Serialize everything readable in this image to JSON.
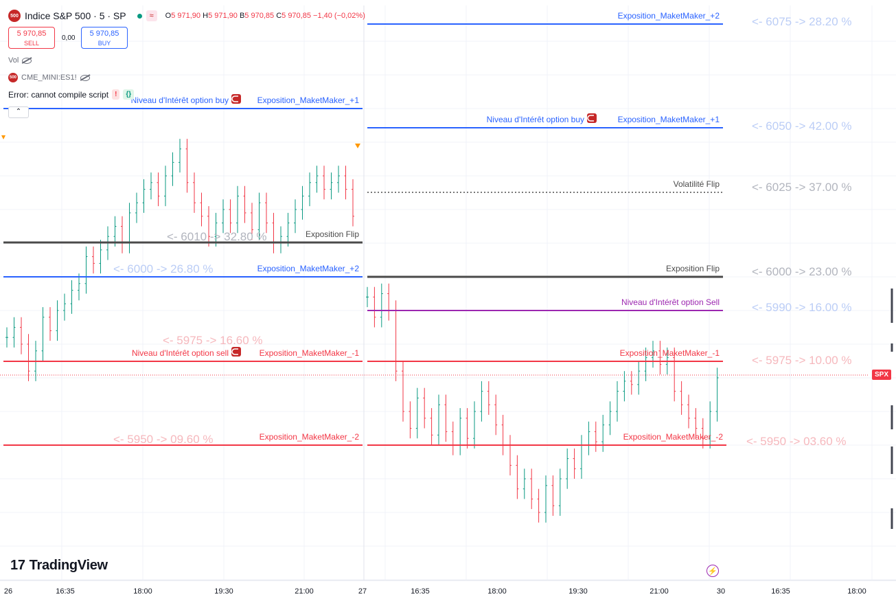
{
  "header": {
    "logo_text": "500",
    "symbol": "Indice S&P 500 · 5 · SP",
    "wave_icon": "≈",
    "o_label": "O",
    "o_value": "5 971,90",
    "h_label": "H",
    "h_value": "5 971,90",
    "b_label": "B",
    "b_value": "5 970,85",
    "c_label": "C",
    "c_value": "5 970,85",
    "change": "−1,40 (−0,02%)"
  },
  "trade": {
    "sell_price": "5 970,85",
    "sell_label": "SELL",
    "spread": "0,00",
    "buy_price": "5 970,85",
    "buy_label": "BUY"
  },
  "indicators": {
    "vol_label": "Vol",
    "cme_logo": "500",
    "cme_label": "CME_MINI:ES1!",
    "error_text": "Error: cannot compile script",
    "error_badge": "!",
    "code_badge": "{}",
    "collapse_icon": "chevron-up-icon"
  },
  "colors": {
    "blue": "#2962ff",
    "black": "#4a4a4a",
    "red": "#f23645",
    "purple": "#9c27b0",
    "up": "#089981",
    "down": "#f23645",
    "faded_blue": "#bbcdf6",
    "faded_red": "#f6b8bd",
    "faded_gray": "#b2b5be"
  },
  "chart_data": {
    "type": "candlestick",
    "x_ticks": [
      "26",
      "16:35",
      "18:00",
      "19:30",
      "21:00",
      "27",
      "16:35",
      "18:00",
      "19:30",
      "21:00",
      "30",
      "16:35",
      "18:00"
    ],
    "last_price_tag": "SPX",
    "day1_closes": [
      5982,
      5985,
      5980,
      5972,
      5978,
      5988,
      5984,
      5990,
      5992,
      5996,
      5998,
      6006,
      6004,
      6008,
      6012,
      6015,
      6010,
      6019,
      6022,
      6026,
      6028,
      6024,
      6030,
      6034,
      6038,
      6028,
      6022,
      6018,
      6012,
      6016,
      6020,
      6016,
      6024,
      6019,
      6014,
      6022,
      6016,
      6010,
      6012,
      6016,
      6020,
      6024,
      6028,
      6030,
      6026,
      6028,
      6030,
      6026,
      6018
    ],
    "day2_closes": [
      5994,
      5988,
      5995,
      5990,
      5972,
      5960,
      5955,
      5964,
      5958,
      5953,
      5962,
      5954,
      5950,
      5958,
      5952,
      5960,
      5966,
      5962,
      5956,
      5950,
      5944,
      5937,
      5940,
      5934,
      5930,
      5938,
      5932,
      5940,
      5946,
      5943,
      5950,
      5954,
      5951,
      5956,
      5960,
      5966,
      5969,
      5968,
      5972,
      5976,
      5978,
      5974,
      5976,
      5966,
      5962,
      5958,
      5955,
      5952,
      5960,
      5970
    ],
    "levels": [
      {
        "label": "Exposition_MaketMaker_+2",
        "color": "blue"
      },
      {
        "label": "Niveau d'Intérêt option buy",
        "color": "blue"
      },
      {
        "label": "Exposition_MaketMaker_+1",
        "color": "blue"
      },
      {
        "label": "Niveau d'Intérêt option buy",
        "color": "blue"
      },
      {
        "label": "Exposition_MaketMaker_+1",
        "color": "blue"
      },
      {
        "label": "Volatilité Flip",
        "color": "black"
      },
      {
        "label": "Exposition Flip",
        "color": "black"
      },
      {
        "label": "Exposition_MaketMaker_+2",
        "color": "blue"
      },
      {
        "label": "Exposition Flip",
        "color": "black"
      },
      {
        "label": "Niveau d'Intérêt option Sell",
        "color": "purple"
      },
      {
        "label": "Niveau d'Intérêt option sell",
        "color": "red"
      },
      {
        "label": "Exposition_MaketMaker_-1",
        "color": "red"
      },
      {
        "label": "Exposition_MaketMaker_-1",
        "color": "red"
      },
      {
        "label": "Exposition_MaketMaker_-2",
        "color": "red"
      },
      {
        "label": "Exposition_MaketMaker_-2",
        "color": "red"
      }
    ],
    "annotations": [
      {
        "text": "<- 6075 -> 28.20 %",
        "color": "faded_blue"
      },
      {
        "text": "<- 6050 -> 42.00 %",
        "color": "faded_blue"
      },
      {
        "text": "<- 6025 -> 37.00 %",
        "color": "faded_gray"
      },
      {
        "text": "<- 6010 -> 32.80 %",
        "color": "faded_gray"
      },
      {
        "text": "<- 6000 -> 26.80 %",
        "color": "faded_blue"
      },
      {
        "text": "<- 6000 -> 23.00 %",
        "color": "faded_gray"
      },
      {
        "text": "<- 5990 -> 16.00 %",
        "color": "faded_blue"
      },
      {
        "text": "<- 5975 -> 16.60 %",
        "color": "faded_red"
      },
      {
        "text": "<- 5975 -> 10.00 %",
        "color": "faded_red"
      },
      {
        "text": "<- 5950 -> 09.60 %",
        "color": "faded_red"
      },
      {
        "text": "<- 5950 -> 03.60 %",
        "color": "faded_red"
      }
    ]
  },
  "branding": {
    "logo_text": "TradingView",
    "logo_mark": "17"
  }
}
